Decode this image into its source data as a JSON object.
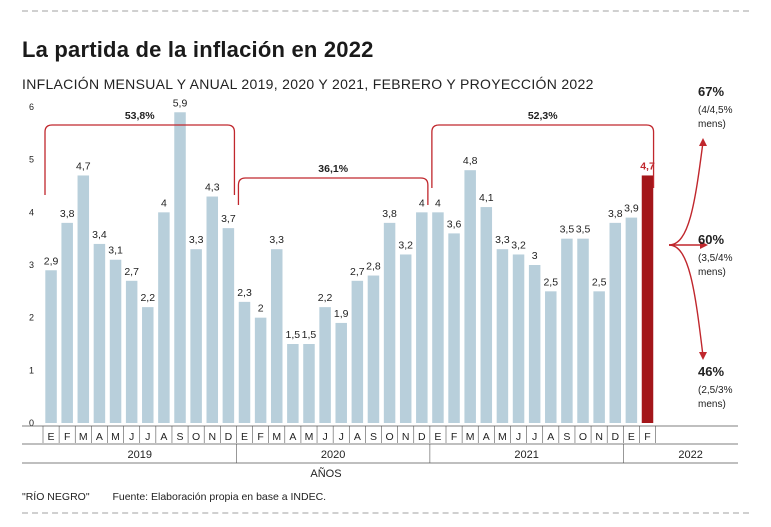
{
  "title": "La partida de la inflación en 2022",
  "subtitle": "INFLACIÓN MENSUAL Y ANUAL 2019, 2020 Y 2021, FEBRERO Y PROYECCIÓN 2022",
  "colors": {
    "bar": "#b8cfdb",
    "highlight": "#a3161a",
    "bracket": "#c0272d",
    "text": "#222222"
  },
  "chart_data": {
    "type": "bar",
    "ylim": [
      0,
      6
    ],
    "yticks": [
      "0",
      "1",
      "2",
      "3",
      "4",
      "5",
      "6"
    ],
    "categories": [
      "E",
      "F",
      "M",
      "A",
      "M",
      "J",
      "J",
      "A",
      "S",
      "O",
      "N",
      "D",
      "E",
      "F",
      "M",
      "A",
      "M",
      "J",
      "J",
      "A",
      "S",
      "O",
      "N",
      "D",
      "E",
      "F",
      "M",
      "A",
      "M",
      "J",
      "J",
      "A",
      "S",
      "O",
      "N",
      "D",
      "E",
      "F"
    ],
    "values": [
      2.9,
      3.8,
      4.7,
      3.4,
      3.1,
      2.7,
      2.2,
      4,
      5.9,
      3.3,
      4.3,
      3.7,
      2.3,
      2,
      3.3,
      1.5,
      1.5,
      2.2,
      1.9,
      2.7,
      2.8,
      3.8,
      3.2,
      4,
      4,
      3.6,
      4.8,
      4.1,
      3.3,
      3.2,
      3,
      2.5,
      3.5,
      3.5,
      2.5,
      3.8,
      3.9,
      4.7
    ],
    "value_labels": [
      "2,9",
      "3,8",
      "4,7",
      "3,4",
      "3,1",
      "2,7",
      "2,2",
      "4",
      "5,9",
      "3,3",
      "4,3",
      "3,7",
      "2,3",
      "2",
      "3,3",
      "1,5",
      "1,5",
      "2,2",
      "1,9",
      "2,7",
      "2,8",
      "3,8",
      "3,2",
      "4",
      "4",
      "3,6",
      "4,8",
      "4,1",
      "3,3",
      "3,2",
      "3",
      "2,5",
      "3,5",
      "3,5",
      "2,5",
      "3,8",
      "3,9",
      "4,7"
    ],
    "highlight_index": 37,
    "years": [
      "2019",
      "2020",
      "2021",
      "2022"
    ],
    "xlabel": "AÑOS",
    "annual": [
      {
        "label": "53,8%",
        "from": 0,
        "to": 11
      },
      {
        "label": "36,1%",
        "from": 12,
        "to": 23
      },
      {
        "label": "52,3%",
        "from": 24,
        "to": 37
      }
    ],
    "projections": [
      {
        "value": "67%",
        "range": "(4/4,5%",
        "unit": "mens)"
      },
      {
        "value": "60%",
        "range": "(3,5/4%",
        "unit": "mens)"
      },
      {
        "value": "46%",
        "range": "(2,5/3%",
        "unit": "mens)"
      }
    ]
  },
  "footer": {
    "credit": "\"RÍO NEGRO\"",
    "source": "Fuente: Elaboración propia en base a INDEC."
  }
}
